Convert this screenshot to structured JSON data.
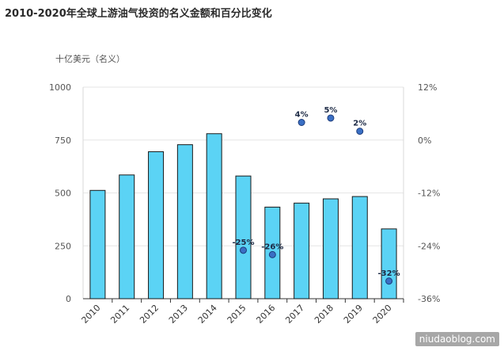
{
  "title": "2010-2020年全球上游油气投资的名义金额和百分比变化",
  "chart_data": {
    "type": "bar",
    "categories": [
      "2010",
      "2011",
      "2012",
      "2013",
      "2014",
      "2015",
      "2016",
      "2017",
      "2018",
      "2019",
      "2020"
    ],
    "series": [
      {
        "axis": "left",
        "kind": "bar",
        "values": [
          512,
          585,
          695,
          728,
          780,
          580,
          433,
          452,
          472,
          483,
          330
        ]
      },
      {
        "axis": "right",
        "kind": "scatter",
        "values": [
          null,
          null,
          null,
          null,
          null,
          -25,
          -26,
          4,
          5,
          2,
          -32
        ],
        "labels": {
          "2015": "-25%",
          "2016": "-26%",
          "2017": "4%",
          "2018": "5%",
          "2019": "2%",
          "2020": "-32%"
        }
      }
    ],
    "ylabel": "十亿美元（名义）",
    "ylim": [
      0,
      1000
    ],
    "yticks": [
      "1000",
      "750",
      "500",
      "250",
      "0"
    ],
    "y2lim": [
      -36,
      12
    ],
    "y2ticks": [
      "12%",
      "0%",
      "-12%",
      "-24%",
      "-36%"
    ],
    "colors": {
      "bar": "#5bd3f5",
      "bar_edge": "#1a1a1a",
      "point": "#3a6fc4",
      "point_edge": "#1e3c7a",
      "grid": "#e6e6e6"
    },
    "grid": true
  },
  "watermark": "niudaoblog.com"
}
